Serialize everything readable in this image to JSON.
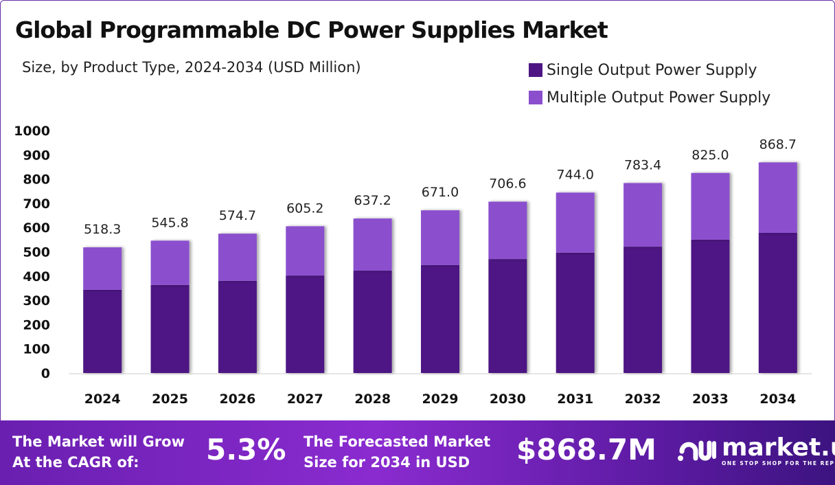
{
  "chart_data": {
    "type": "bar",
    "stacked": true,
    "title": "Global Programmable DC Power Supplies Market",
    "subtitle": "Size, by Product Type, 2024-2034 (USD Million)",
    "categories": [
      "2024",
      "2025",
      "2026",
      "2027",
      "2028",
      "2029",
      "2030",
      "2031",
      "2032",
      "2033",
      "2034"
    ],
    "series": [
      {
        "name": "Single Output Power Supply",
        "color": "#4e1684",
        "values": [
          343,
          363,
          380,
          402,
          422,
          445,
          470,
          496,
          521,
          550,
          578
        ]
      },
      {
        "name": "Multiple Output Power Supply",
        "color": "#8b4fce",
        "values": [
          175.3,
          182.8,
          194.7,
          203.2,
          215.2,
          226.0,
          236.6,
          248.0,
          262.4,
          275.0,
          290.7
        ]
      }
    ],
    "totals": [
      "518.3",
      "545.8",
      "574.7",
      "605.2",
      "637.2",
      "671.0",
      "706.6",
      "744.0",
      "783.4",
      "825.0",
      "868.7"
    ],
    "yticks": [
      0,
      100,
      200,
      300,
      400,
      500,
      600,
      700,
      800,
      900,
      1000
    ],
    "ylim": [
      0,
      1000
    ],
    "grid": false,
    "legend_position": "top-right"
  },
  "footer": {
    "cagr_label_1": "The Market will Grow",
    "cagr_label_2": "At the CAGR of:",
    "cagr_value": "5.3%",
    "forecast_label_1": "The Forecasted Market",
    "forecast_label_2": "Size for 2034 in USD",
    "forecast_value": "$868.7M",
    "logo_name": "market.us",
    "logo_tagline": "ONE STOP SHOP FOR THE REPORTS"
  }
}
